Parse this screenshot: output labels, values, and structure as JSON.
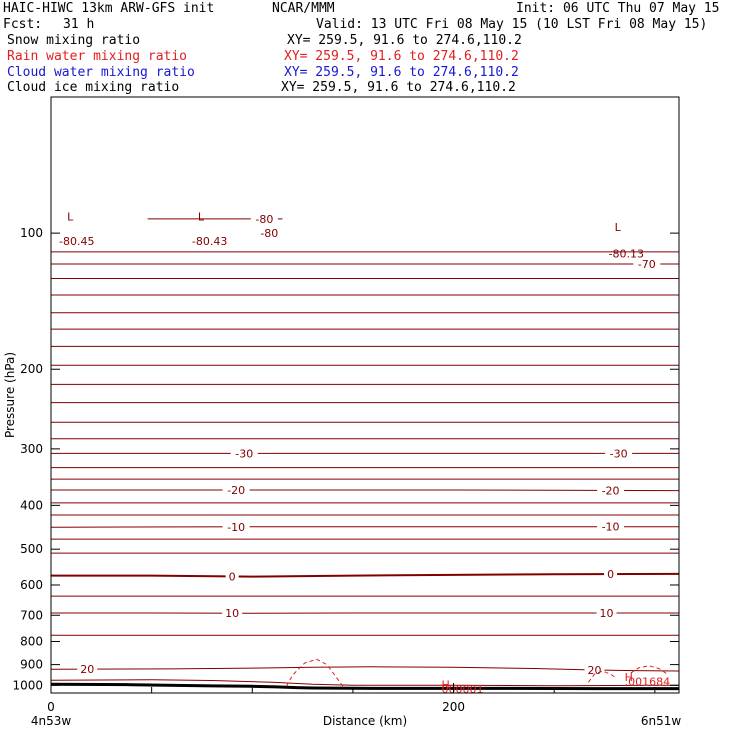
{
  "header": {
    "model": "HAIC-HIWC 13km ARW-GFS init",
    "org": "NCAR/MMM",
    "init": "Init: 06 UTC Thu 07 May 15",
    "fcst_label": "Fcst:",
    "fcst_value": "31 h",
    "valid": "Valid: 13 UTC Fri 08 May 15 (10 LST Fri 08 May 15)"
  },
  "legend": [
    {
      "name": "Snow mixing ratio",
      "xy": "XY= 259.5, 91.6 to 274.6,110.2",
      "color": "#000000"
    },
    {
      "name": "Rain water mixing ratio",
      "xy": "XY= 259.5, 91.6 to 274.6,110.2",
      "color": "#e02020"
    },
    {
      "name": "Cloud water mixing ratio",
      "xy": "XY= 259.5, 91.6 to 274.6,110.2",
      "color": "#1818d0"
    },
    {
      "name": "Cloud ice mixing ratio",
      "xy": "XY= 259.5, 91.6 to 274.6,110.2",
      "color": "#000000"
    }
  ],
  "chart_data": {
    "type": "line",
    "xlabel": "Distance (km)",
    "ylabel": "Pressure (hPa)",
    "x_range": [
      0,
      312
    ],
    "y_range_hpa": [
      50,
      1040
    ],
    "y_scale": "log",
    "y_ticks": [
      100,
      200,
      300,
      400,
      500,
      600,
      700,
      800,
      900,
      1000
    ],
    "y_tick_labels": [
      "100",
      "200",
      "300",
      "400",
      "500",
      "600",
      "700",
      "800",
      "900",
      "1000"
    ],
    "x_ticks": [
      0,
      200
    ],
    "x_tick_labels": [
      "0",
      "200"
    ],
    "x_minor_ticks": [
      50,
      100,
      150,
      250,
      300
    ],
    "endpoint_labels": {
      "left": "4n53w",
      "right": "6n51w"
    },
    "temperature_color": "#800000",
    "rain_color": "#e02020",
    "temperature_contours": [
      {
        "value": 20,
        "label": "20",
        "label_positions": [
          18,
          270
        ],
        "points": [
          [
            0,
            922
          ],
          [
            60,
            920
          ],
          [
            100,
            916
          ],
          [
            130,
            912
          ],
          [
            160,
            910
          ],
          [
            200,
            912
          ],
          [
            240,
            918
          ],
          [
            270,
            925
          ],
          [
            290,
            928
          ],
          [
            312,
            930
          ]
        ]
      },
      {
        "value": 10,
        "label": "10",
        "label_positions": [
          90,
          276
        ],
        "points": [
          [
            0,
            692
          ],
          [
            50,
            692
          ],
          [
            100,
            693
          ],
          [
            150,
            692
          ],
          [
            200,
            692
          ],
          [
            250,
            692
          ],
          [
            312,
            692
          ]
        ]
      },
      {
        "value": 0,
        "label": "0",
        "label_positions": [
          90,
          278
        ],
        "bold": true,
        "points": [
          [
            0,
            572
          ],
          [
            50,
            572
          ],
          [
            100,
            575
          ],
          [
            150,
            572
          ],
          [
            200,
            570
          ],
          [
            250,
            568
          ],
          [
            312,
            567
          ]
        ]
      },
      {
        "value": -10,
        "label": "-10",
        "label_positions": [
          92,
          278
        ],
        "points": [
          [
            0,
            447
          ],
          [
            100,
            446
          ],
          [
            200,
            446
          ],
          [
            312,
            446
          ]
        ]
      },
      {
        "value": -20,
        "label": "-20",
        "label_positions": [
          92,
          278
        ],
        "points": [
          [
            0,
            370
          ],
          [
            100,
            370
          ],
          [
            200,
            370
          ],
          [
            312,
            371
          ]
        ]
      },
      {
        "value": -30,
        "label": "-30",
        "label_positions": [
          96,
          282
        ],
        "points": [
          [
            0,
            307
          ],
          [
            100,
            307
          ],
          [
            200,
            307
          ],
          [
            312,
            307
          ]
        ]
      },
      {
        "value": -70,
        "label": "-70",
        "label_positions": [
          296
        ],
        "points": [
          [
            0,
            117
          ],
          [
            100,
            117
          ],
          [
            200,
            117
          ],
          [
            312,
            117
          ]
        ]
      },
      {
        "value": -80,
        "label": "-80",
        "label_positions": [
          106
        ],
        "points": [
          [
            48,
            93
          ],
          [
            115,
            93
          ]
        ]
      }
    ],
    "unlabeled_isotherms_hpa": [
      110,
      126,
      137,
      150,
      163,
      178,
      196,
      216,
      237,
      262,
      285,
      330,
      350,
      395,
      420,
      475,
      510,
      635,
      775
    ],
    "surface_line": {
      "points": [
        [
          0,
          995
        ],
        [
          40,
          997
        ],
        [
          80,
          1003
        ],
        [
          100,
          1005
        ],
        [
          112,
          1008
        ],
        [
          122,
          1012
        ],
        [
          130,
          1014
        ],
        [
          160,
          1016
        ],
        [
          220,
          1016
        ],
        [
          270,
          1017
        ],
        [
          312,
          1017
        ]
      ]
    },
    "low_inner_line": {
      "points": [
        [
          0,
          975
        ],
        [
          50,
          972
        ],
        [
          80,
          976
        ],
        [
          110,
          985
        ],
        [
          130,
          995
        ],
        [
          150,
          1000
        ],
        [
          200,
          1000
        ],
        [
          250,
          1002
        ],
        [
          280,
          1001
        ],
        [
          312,
          1000
        ]
      ]
    },
    "rain_contours": [
      {
        "points": [
          [
            117,
            1005
          ],
          [
            120,
            950
          ],
          [
            126,
            893
          ],
          [
            132,
            876
          ],
          [
            137,
            900
          ],
          [
            141,
            950
          ],
          [
            145,
            1005
          ]
        ]
      },
      {
        "points": [
          [
            267,
            985
          ],
          [
            270,
            945
          ],
          [
            274,
            930
          ],
          [
            278,
            945
          ],
          [
            281,
            965
          ]
        ]
      },
      {
        "points": [
          [
            288,
            940
          ],
          [
            292,
            915
          ],
          [
            297,
            905
          ],
          [
            302,
            918
          ],
          [
            306,
            943
          ]
        ]
      }
    ],
    "annotations": [
      {
        "text": "L",
        "x": 8,
        "p": 92
      },
      {
        "text": "-80.45",
        "x": 4,
        "p": 104
      },
      {
        "text": "L",
        "x": 73,
        "p": 92
      },
      {
        "text": "-80.43",
        "x": 70,
        "p": 104
      },
      {
        "text": "-80",
        "x": 104,
        "p": 100
      },
      {
        "text": "L",
        "x": 280,
        "p": 97
      },
      {
        "text": "-80.13",
        "x": 277,
        "p": 111
      },
      {
        "text": "H",
        "x": 194,
        "p": 996
      },
      {
        "text": "000001",
        "x": 194,
        "p": 1020
      },
      {
        "text": "H",
        "x": 285,
        "p": 958
      },
      {
        "text": ".001684",
        "x": 285,
        "p": 980
      }
    ]
  }
}
